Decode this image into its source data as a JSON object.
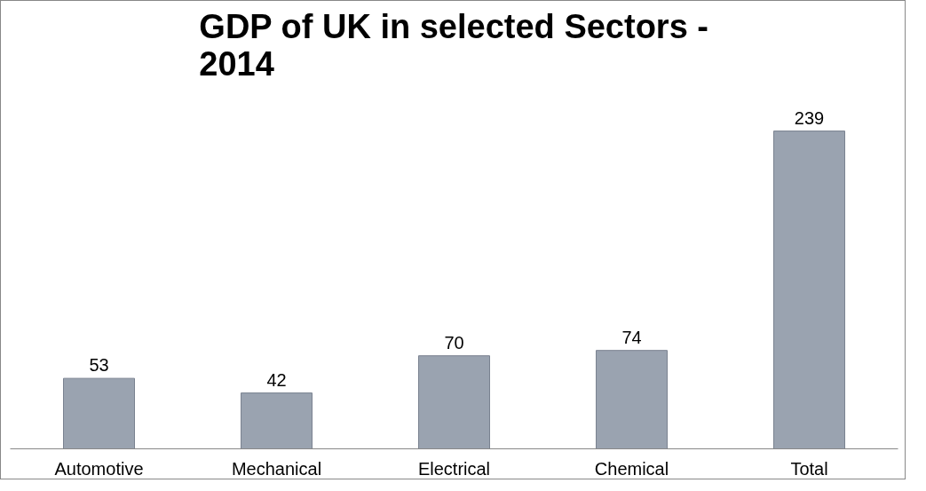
{
  "chart_data": {
    "type": "bar",
    "title": "GDP of UK in selected Sectors - 2014",
    "categories": [
      "Automotive",
      "Mechanical",
      "Electrical",
      "Chemical",
      "Total"
    ],
    "values": [
      53,
      42,
      70,
      74,
      239
    ],
    "color": "#9aa3b0",
    "data_labels": true,
    "grid": false
  }
}
